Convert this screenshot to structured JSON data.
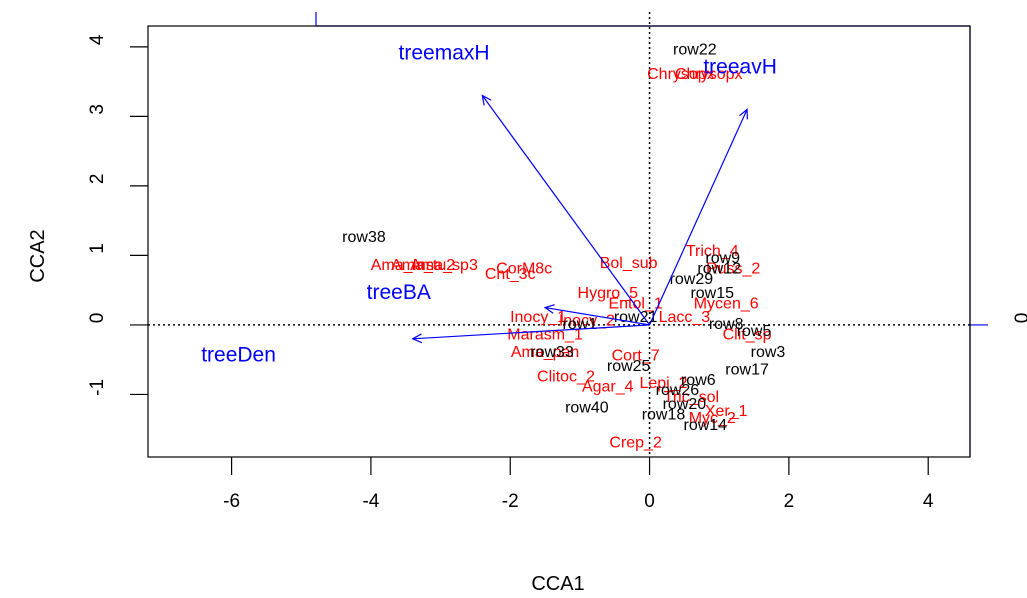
{
  "colors": {
    "sites": "#000000",
    "species": "#ff0000",
    "biplot": "#0000ff",
    "frame": "#000000",
    "reference_lines": "#000000"
  },
  "chart_data": {
    "type": "scatter",
    "title": "",
    "xlabel": "CCA1",
    "ylabel": "CCA2",
    "xlim": [
      -7.2,
      4.6
    ],
    "ylim": [
      -1.9,
      4.3
    ],
    "xticks": [
      -6,
      -4,
      -2,
      0,
      2,
      4
    ],
    "yticks": [
      -1,
      0,
      1,
      2,
      3,
      4
    ],
    "reference_lines": {
      "x": 0,
      "y": 0,
      "style": "dotted"
    },
    "secondary_axes": {
      "color": "#0000ff",
      "right_axis_tick_label": "0",
      "top_axis_tick_label": ""
    },
    "grid": false,
    "legend": "none",
    "biplot_arrows": [
      {
        "name": "treemaxH",
        "x": -2.4,
        "y": 3.3,
        "label_x": -2.95,
        "label_y": 3.9
      },
      {
        "name": "treeavH",
        "x": 1.4,
        "y": 3.1,
        "label_x": 1.3,
        "label_y": 3.7
      },
      {
        "name": "treeBA",
        "x": -1.5,
        "y": 0.25,
        "label_x": -3.6,
        "label_y": 0.45
      },
      {
        "name": "treeDen",
        "x": -3.4,
        "y": -0.2,
        "label_x": -5.9,
        "label_y": -0.45
      }
    ],
    "sites": [
      {
        "label": "row38",
        "x": -4.1,
        "y": 1.25
      },
      {
        "label": "row22",
        "x": 0.65,
        "y": 3.95
      },
      {
        "label": "row29",
        "x": 0.6,
        "y": 0.65
      },
      {
        "label": "row9",
        "x": 1.05,
        "y": 0.95
      },
      {
        "label": "row12",
        "x": 1.0,
        "y": 0.8
      },
      {
        "label": "row15",
        "x": 0.9,
        "y": 0.45
      },
      {
        "label": "row21",
        "x": -0.2,
        "y": 0.1
      },
      {
        "label": "row5",
        "x": 1.5,
        "y": -0.1
      },
      {
        "label": "row8",
        "x": 1.1,
        "y": 0.0
      },
      {
        "label": "row3",
        "x": 1.7,
        "y": -0.4
      },
      {
        "label": "row17",
        "x": 1.4,
        "y": -0.65
      },
      {
        "label": "row6",
        "x": 0.7,
        "y": -0.8
      },
      {
        "label": "row33",
        "x": -1.4,
        "y": -0.4
      },
      {
        "label": "row25",
        "x": -0.3,
        "y": -0.6
      },
      {
        "label": "row40",
        "x": -0.9,
        "y": -1.2
      },
      {
        "label": "row18",
        "x": 0.2,
        "y": -1.3
      },
      {
        "label": "row14",
        "x": 0.8,
        "y": -1.45
      },
      {
        "label": "row1",
        "x": -1.0,
        "y": 0.0
      },
      {
        "label": "row26",
        "x": 0.4,
        "y": -0.95
      },
      {
        "label": "row20",
        "x": 0.5,
        "y": -1.15
      }
    ],
    "species": [
      {
        "label": "Chrysopx",
        "x": 0.45,
        "y": 3.6
      },
      {
        "label": "Chrysopx",
        "x": 0.85,
        "y": 3.6
      },
      {
        "label": "Ama_Ins",
        "x": -3.55,
        "y": 0.85
      },
      {
        "label": "Ama_tu2",
        "x": -3.25,
        "y": 0.85
      },
      {
        "label": "Ama_sp3",
        "x": -2.95,
        "y": 0.85
      },
      {
        "label": "CorM8c",
        "x": -1.8,
        "y": 0.8
      },
      {
        "label": "Cnt_3c",
        "x": -2.0,
        "y": 0.72
      },
      {
        "label": "Bol_sub",
        "x": -0.3,
        "y": 0.88
      },
      {
        "label": "Trich_4",
        "x": 0.9,
        "y": 1.05
      },
      {
        "label": "Russ_2",
        "x": 1.2,
        "y": 0.8
      },
      {
        "label": "Hygro_5",
        "x": -0.6,
        "y": 0.45
      },
      {
        "label": "Entol_1",
        "x": -0.2,
        "y": 0.3
      },
      {
        "label": "Mycen_6",
        "x": 1.1,
        "y": 0.3
      },
      {
        "label": "Inocy_1",
        "x": -1.6,
        "y": 0.1
      },
      {
        "label": "Inocy_2",
        "x": -0.9,
        "y": 0.05
      },
      {
        "label": "Lacc_3",
        "x": 0.5,
        "y": 0.1
      },
      {
        "label": "Clit_sp",
        "x": 1.4,
        "y": -0.15
      },
      {
        "label": "Marasm_1",
        "x": -1.5,
        "y": -0.15
      },
      {
        "label": "Ama_pan",
        "x": -1.5,
        "y": -0.4
      },
      {
        "label": "Cort_7",
        "x": -0.2,
        "y": -0.45
      },
      {
        "label": "Clitoc_2",
        "x": -1.2,
        "y": -0.75
      },
      {
        "label": "Agar_4",
        "x": -0.6,
        "y": -0.9
      },
      {
        "label": "Lepi_2",
        "x": 0.2,
        "y": -0.85
      },
      {
        "label": "Tric_sol",
        "x": 0.6,
        "y": -1.05
      },
      {
        "label": "Xer_1",
        "x": 1.1,
        "y": -1.25
      },
      {
        "label": "Myc_2",
        "x": 0.9,
        "y": -1.35
      },
      {
        "label": "Crep_2",
        "x": -0.2,
        "y": -1.7
      }
    ]
  }
}
